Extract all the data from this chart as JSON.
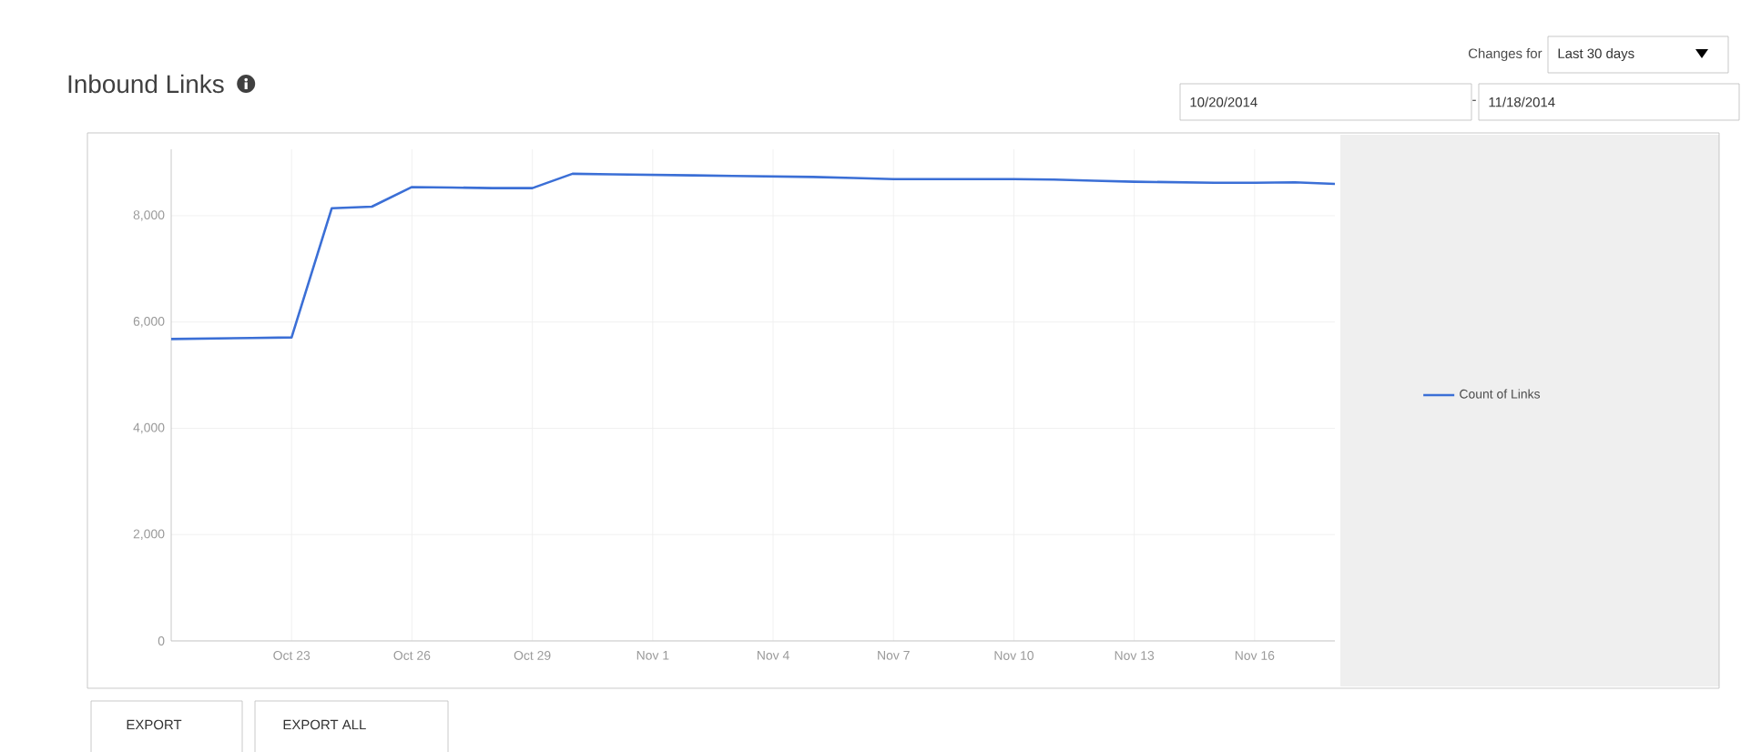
{
  "chart_data": {
    "type": "line",
    "title": "Inbound Links",
    "x": [
      "2014-10-20",
      "2014-10-21",
      "2014-10-22",
      "2014-10-23",
      "2014-10-24",
      "2014-10-25",
      "2014-10-26",
      "2014-10-27",
      "2014-10-28",
      "2014-10-29",
      "2014-10-30",
      "2014-10-31",
      "2014-11-01",
      "2014-11-02",
      "2014-11-03",
      "2014-11-04",
      "2014-11-05",
      "2014-11-06",
      "2014-11-07",
      "2014-11-08",
      "2014-11-09",
      "2014-11-10",
      "2014-11-11",
      "2014-11-12",
      "2014-11-13",
      "2014-11-14",
      "2014-11-15",
      "2014-11-16",
      "2014-11-17",
      "2014-11-18"
    ],
    "series": [
      {
        "name": "Count of Links",
        "color": "#3b6fd6",
        "values": [
          5680,
          5690,
          5700,
          5710,
          8140,
          8170,
          8540,
          8530,
          8520,
          8520,
          8790,
          8780,
          8770,
          8760,
          8750,
          8740,
          8730,
          8710,
          8690,
          8690,
          8690,
          8690,
          8680,
          8660,
          8640,
          8630,
          8620,
          8620,
          8630,
          8600
        ]
      }
    ],
    "xlim": [
      "2014-10-20",
      "2014-11-18"
    ],
    "xticks": [
      {
        "value": "2014-10-23",
        "label": "Oct 23"
      },
      {
        "value": "2014-10-26",
        "label": "Oct 26"
      },
      {
        "value": "2014-10-29",
        "label": "Oct 29"
      },
      {
        "value": "2014-11-01",
        "label": "Nov 1"
      },
      {
        "value": "2014-11-04",
        "label": "Nov 4"
      },
      {
        "value": "2014-11-07",
        "label": "Nov 7"
      },
      {
        "value": "2014-11-10",
        "label": "Nov 10"
      },
      {
        "value": "2014-11-13",
        "label": "Nov 13"
      },
      {
        "value": "2014-11-16",
        "label": "Nov 16"
      }
    ],
    "ylim": [
      0,
      9250
    ],
    "yticks": [
      0,
      {
        "value": 2000,
        "label": "2,000"
      },
      {
        "value": 4000,
        "label": "4,000"
      },
      {
        "value": 6000,
        "label": "6,000"
      },
      {
        "value": 8000,
        "label": "8,000"
      }
    ],
    "grid": true,
    "legend": "right",
    "marker": "none",
    "line_style": "solid",
    "annotations": [
      "Changes for",
      "Last 30 days",
      "10/20/2014",
      "11/18/2014",
      "EXPORT",
      "EXPORT ALL",
      "-"
    ]
  }
}
